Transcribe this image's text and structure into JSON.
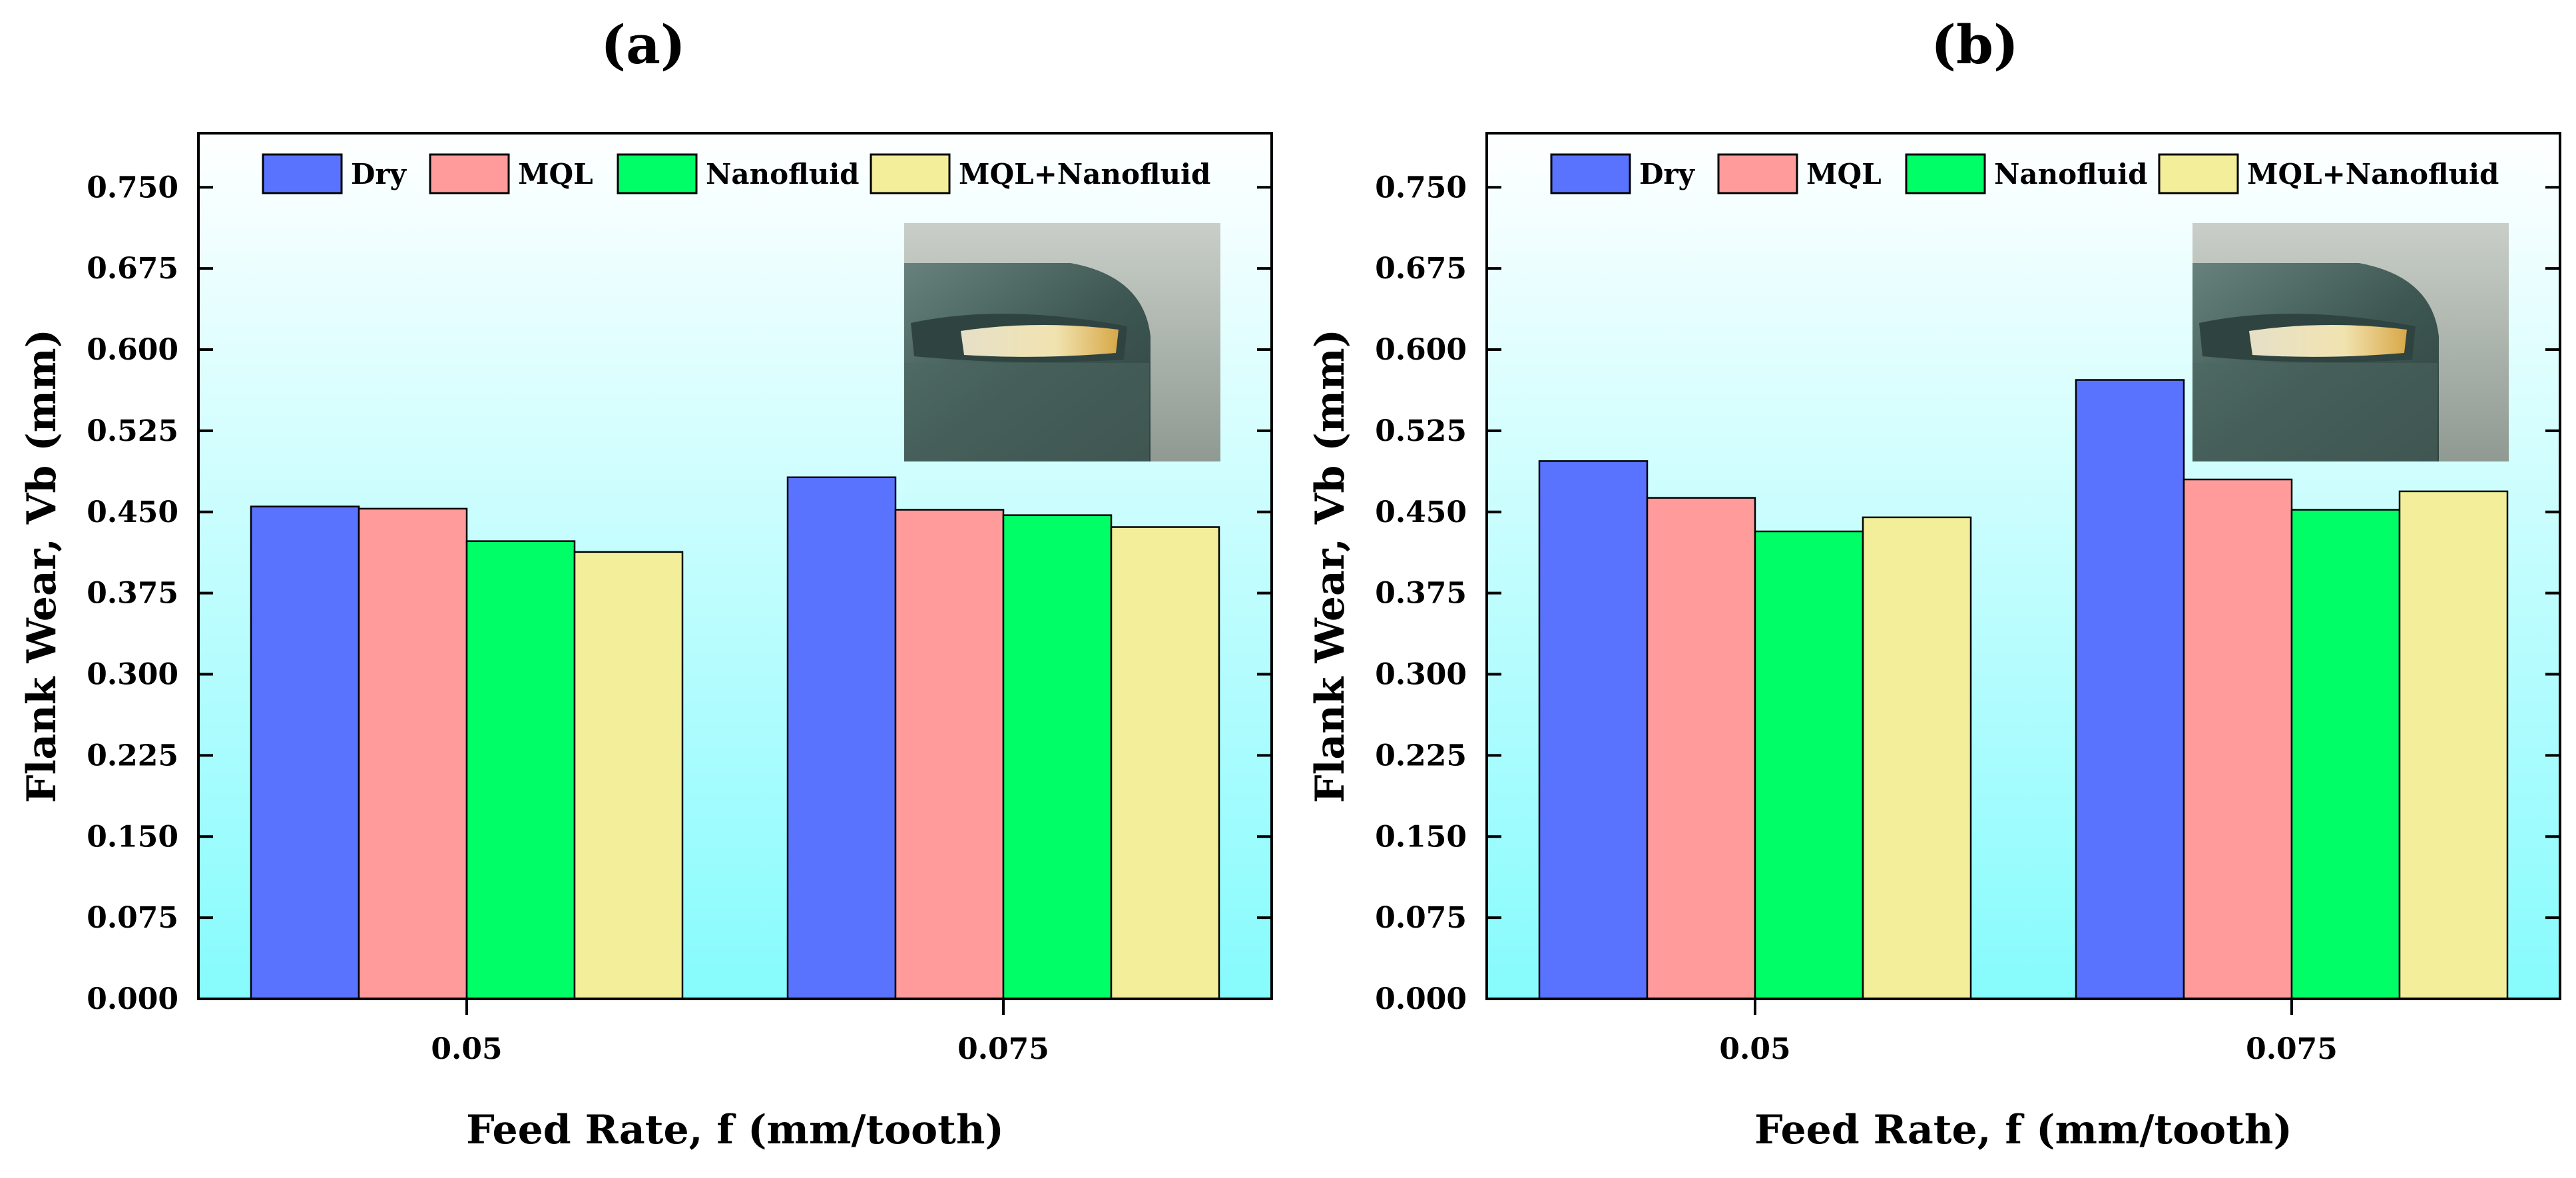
{
  "chart_data": [
    {
      "type": "bar",
      "panel_label": "(a)",
      "categories": [
        "0.05",
        "0.075"
      ],
      "series": [
        {
          "name": "Dry",
          "values": [
            0.455,
            0.482
          ]
        },
        {
          "name": "MQL",
          "values": [
            0.453,
            0.452
          ]
        },
        {
          "name": "Nanofluid",
          "values": [
            0.423,
            0.447
          ]
        },
        {
          "name": "MQL+Nanofluid",
          "values": [
            0.413,
            0.436
          ]
        }
      ],
      "xlabel": "Feed Rate, f (mm/tooth)",
      "ylabel": "Flank Wear, Vb (mm)",
      "ylim": [
        0,
        0.8
      ],
      "yticks": [
        "0.000",
        "0.075",
        "0.150",
        "0.225",
        "0.300",
        "0.375",
        "0.450",
        "0.525",
        "0.600",
        "0.675",
        "0.750"
      ],
      "legend": "top",
      "inset": "tool-flank-photo",
      "grid": false
    },
    {
      "type": "bar",
      "panel_label": "(b)",
      "categories": [
        "0.05",
        "0.075"
      ],
      "series": [
        {
          "name": "Dry",
          "values": [
            0.497,
            0.572
          ]
        },
        {
          "name": "MQL",
          "values": [
            0.463,
            0.48
          ]
        },
        {
          "name": "Nanofluid",
          "values": [
            0.432,
            0.452
          ]
        },
        {
          "name": "MQL+Nanofluid",
          "values": [
            0.445,
            0.469
          ]
        }
      ],
      "xlabel": "Feed Rate, f (mm/tooth)",
      "ylabel": "Flank Wear, Vb (mm)",
      "ylim": [
        0,
        0.8
      ],
      "yticks": [
        "0.000",
        "0.075",
        "0.150",
        "0.225",
        "0.300",
        "0.375",
        "0.450",
        "0.525",
        "0.600",
        "0.675",
        "0.750"
      ],
      "legend": "top",
      "inset": "tool-flank-photo",
      "grid": false
    }
  ],
  "colors": {
    "Dry": "#5a73ff",
    "MQL": "#ff9b9b",
    "Nanofluid": "#00ff66",
    "MQL+Nanofluid": "#f3ee9a",
    "bg_top": "#ffffff",
    "bg_bottom": "#86fbfd"
  }
}
